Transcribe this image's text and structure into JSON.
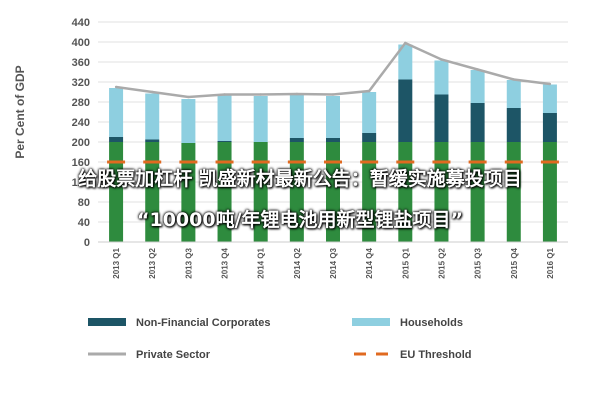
{
  "chart_data": {
    "type": "bar",
    "ylabel": "Per Cent of GDP",
    "ylim": [
      0,
      440
    ],
    "yticks": [
      0,
      40,
      80,
      120,
      160,
      200,
      240,
      280,
      320,
      360,
      400,
      440
    ],
    "categories": [
      "2013 Q1",
      "2013 Q2",
      "2013 Q3",
      "2013 Q4",
      "2014 Q1",
      "2014 Q2",
      "2014 Q3",
      "2014 Q4",
      "2015 Q1",
      "2015 Q2",
      "2015 Q3",
      "2015 Q4",
      "2016 Q1"
    ],
    "series": [
      {
        "name": "Non-Financial Corporates",
        "kind": "bar-stack",
        "color": "#1d5566",
        "values": [
          210,
          205,
          198,
          202,
          200,
          208,
          208,
          218,
          325,
          295,
          278,
          268,
          258
        ]
      },
      {
        "name": "Households",
        "kind": "bar-stack",
        "color": "#8ecfe0",
        "values": [
          98,
          92,
          88,
          92,
          92,
          88,
          84,
          82,
          70,
          68,
          66,
          56,
          57
        ]
      },
      {
        "name": "Private Sector",
        "kind": "line",
        "color": "#aaaaaa",
        "values": [
          310,
          300,
          290,
          295,
          295,
          296,
          295,
          302,
          398,
          365,
          345,
          325,
          316
        ]
      },
      {
        "name": "EU Threshold",
        "kind": "dashed-line",
        "color": "#e06a20",
        "values": [
          160,
          160,
          160,
          160,
          160,
          160,
          160,
          160,
          160,
          160,
          160,
          160,
          160
        ]
      }
    ],
    "legend_placement": "bottom",
    "grid": true
  },
  "overlay": {
    "line1": "给股票加杠杆 凯盛新材最新公告：暂缓实施募投项目",
    "line2": "“10000吨/年锂电池用新型锂盐项目”"
  },
  "colors": {
    "bar_base": "#2e8b3e"
  }
}
